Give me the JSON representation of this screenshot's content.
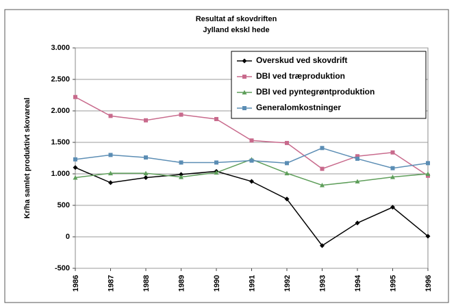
{
  "chart_data": {
    "type": "line",
    "title": "Resultat af skovdriften",
    "subtitle": "Jylland ekskl hede",
    "y_label": "Kr/ha samlet produktivt skovareal",
    "categories": [
      "1986",
      "1987",
      "1988",
      "1989",
      "1990",
      "1991",
      "1992",
      "1993",
      "1994",
      "1995",
      "1996"
    ],
    "series": [
      {
        "name": "Overskud ved skovdrift",
        "color": "#000000",
        "marker": "diamond",
        "values": [
          1100,
          860,
          940,
          990,
          1040,
          880,
          600,
          -140,
          220,
          470,
          10
        ]
      },
      {
        "name": "DBI ved træproduktion",
        "color": "#c86a8c",
        "marker": "square",
        "values": [
          2220,
          1920,
          1850,
          1940,
          1870,
          1530,
          1490,
          1080,
          1280,
          1340,
          970
        ]
      },
      {
        "name": "DBI ved pyntegrøntproduktion",
        "color": "#5e9e5a",
        "marker": "triangle",
        "values": [
          940,
          1010,
          1010,
          950,
          1020,
          1230,
          1010,
          820,
          880,
          950,
          1000
        ]
      },
      {
        "name": "Generalomkostninger",
        "color": "#5b8db4",
        "marker": "square",
        "values": [
          1230,
          1300,
          1260,
          1180,
          1180,
          1210,
          1170,
          1410,
          1240,
          1090,
          1170
        ]
      }
    ],
    "ylim": [
      -500,
      3000
    ],
    "yticks": [
      {
        "value": 3000,
        "label": "3.000"
      },
      {
        "value": 2500,
        "label": "2.500"
      },
      {
        "value": 2000,
        "label": "2.000"
      },
      {
        "value": 1500,
        "label": "1.500"
      },
      {
        "value": 1000,
        "label": "1.000"
      },
      500,
      0,
      -500
    ],
    "grid": true,
    "legend": "top-right"
  }
}
